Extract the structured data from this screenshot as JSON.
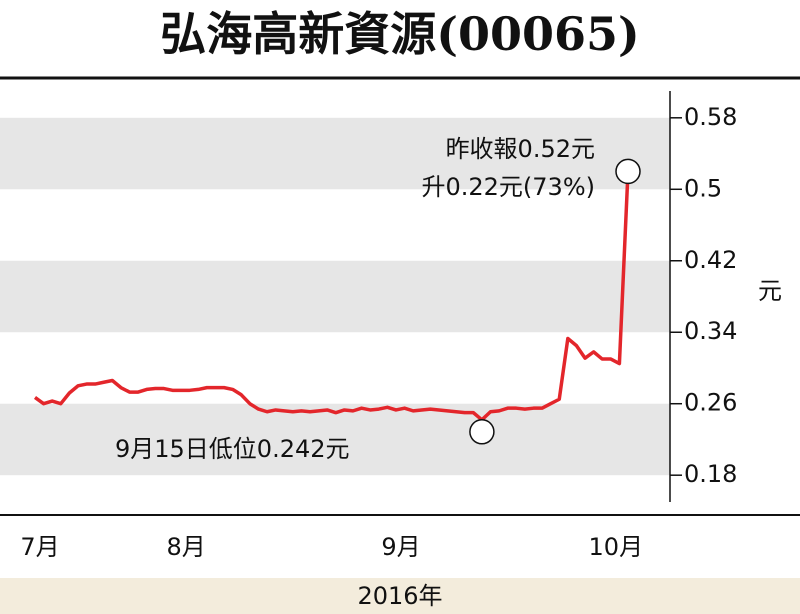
{
  "chart_data": {
    "type": "line",
    "title": "弘海高新資源(00065)",
    "y_label": "元",
    "x_label": "2016年",
    "categories": [
      "7月",
      null,
      null,
      null,
      null,
      null,
      null,
      null,
      null,
      null,
      null,
      null,
      null,
      null,
      null,
      null,
      null,
      "8月",
      null,
      null,
      null,
      null,
      null,
      null,
      null,
      null,
      null,
      null,
      null,
      null,
      null,
      null,
      null,
      null,
      null,
      null,
      null,
      null,
      null,
      null,
      null,
      null,
      "9月",
      null,
      null,
      null,
      null,
      null,
      null,
      null,
      null,
      null,
      null,
      null,
      null,
      null,
      null,
      null,
      null,
      null,
      null,
      null,
      null,
      null,
      null,
      null,
      null,
      "10月",
      null,
      null
    ],
    "series": [
      {
        "name": "弘海高新資源",
        "color": "#e3262b",
        "values": [
          0.267,
          0.26,
          0.263,
          0.26,
          0.272,
          0.28,
          0.282,
          0.282,
          0.284,
          0.286,
          0.278,
          0.273,
          0.273,
          0.276,
          0.277,
          0.277,
          0.275,
          0.275,
          0.275,
          0.276,
          0.278,
          0.278,
          0.278,
          0.276,
          0.27,
          0.26,
          0.254,
          0.251,
          0.253,
          0.252,
          0.251,
          0.252,
          0.251,
          0.252,
          0.253,
          0.25,
          0.253,
          0.252,
          0.255,
          0.253,
          0.254,
          0.256,
          0.253,
          0.255,
          0.252,
          0.253,
          0.254,
          0.253,
          0.252,
          0.251,
          0.25,
          0.25,
          0.242,
          0.251,
          0.252,
          0.255,
          0.255,
          0.254,
          0.255,
          0.255,
          0.26,
          0.265,
          0.333,
          0.325,
          0.311,
          0.318,
          0.31,
          0.31,
          0.305,
          0.52
        ]
      }
    ],
    "ylim": [
      0.15,
      0.61
    ],
    "yticks": [
      0.18,
      0.26,
      0.34,
      0.42,
      0.5,
      0.58
    ],
    "annotations": [
      {
        "text": [
          "昨收報0.52元",
          "升0.22元(73%)"
        ],
        "index": 69
      },
      {
        "text": [
          "9月15日低位0.242元"
        ],
        "index": 52
      }
    ]
  }
}
